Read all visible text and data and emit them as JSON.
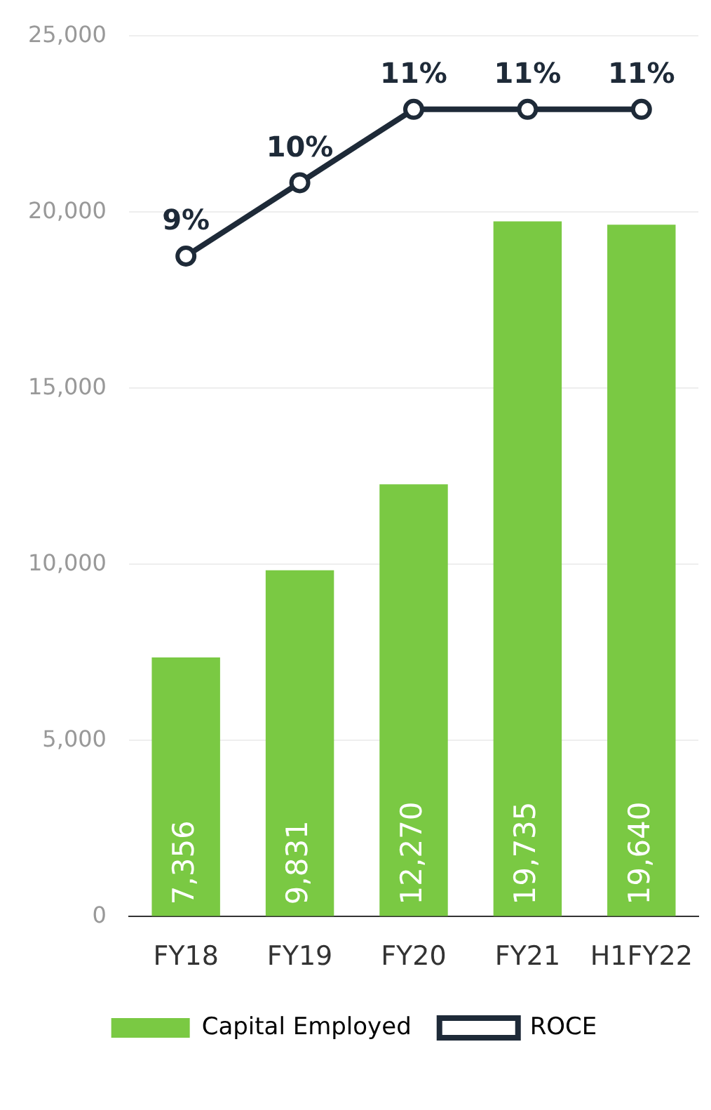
{
  "chart_data": {
    "type": "bar",
    "categories": [
      "FY18",
      "FY19",
      "FY20",
      "FY21",
      "H1FY22"
    ],
    "series": [
      {
        "name": "Capital Employed",
        "color": "#7ac943",
        "values": [
          7356,
          9831,
          12270,
          19735,
          19640
        ],
        "value_labels": [
          "7,356",
          "9,831",
          "12,270",
          "19,735",
          "19,640"
        ]
      },
      {
        "name": "ROCE",
        "type": "line",
        "axis": "y2",
        "color": "#1e2a38",
        "values": [
          9,
          10,
          11,
          11,
          11
        ],
        "value_labels": [
          "9%",
          "10%",
          "11%",
          "11%",
          "11%"
        ]
      }
    ],
    "ylim": [
      0,
      25000
    ],
    "yticks": [
      0,
      {
        "value": 5000,
        "label": "5,000"
      },
      {
        "value": 10000,
        "label": "10,000"
      },
      {
        "value": 15000,
        "label": "15,000"
      },
      {
        "value": 20000,
        "label": "20,000"
      },
      {
        "value": 25000,
        "label": "25,000"
      }
    ],
    "y2lim": [
      0,
      12
    ],
    "data_labels": true,
    "grid": "y",
    "legend": "bottom",
    "marker": "circle",
    "line_style": "solid"
  }
}
